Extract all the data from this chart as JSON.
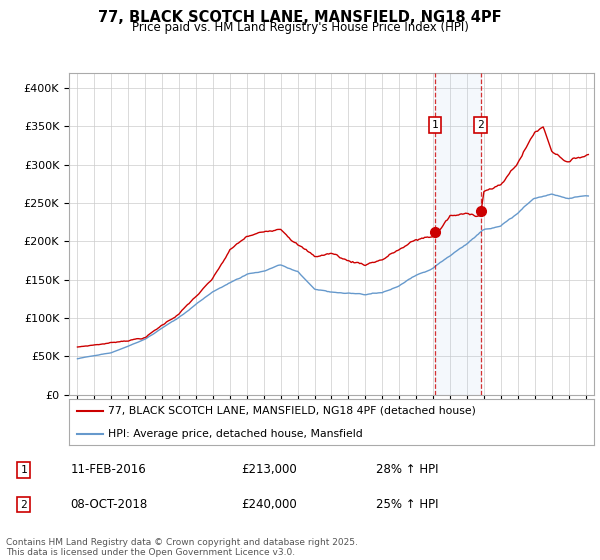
{
  "title": "77, BLACK SCOTCH LANE, MANSFIELD, NG18 4PF",
  "subtitle": "Price paid vs. HM Land Registry's House Price Index (HPI)",
  "ylabel_ticks": [
    "£0",
    "£50K",
    "£100K",
    "£150K",
    "£200K",
    "£250K",
    "£300K",
    "£350K",
    "£400K"
  ],
  "ytick_vals": [
    0,
    50000,
    100000,
    150000,
    200000,
    250000,
    300000,
    350000,
    400000
  ],
  "ylim": [
    0,
    420000
  ],
  "xlim_start": 1994.5,
  "xlim_end": 2025.5,
  "xticks": [
    1995,
    1996,
    1997,
    1998,
    1999,
    2000,
    2001,
    2002,
    2003,
    2004,
    2005,
    2006,
    2007,
    2008,
    2009,
    2010,
    2011,
    2012,
    2013,
    2014,
    2015,
    2016,
    2017,
    2018,
    2019,
    2020,
    2021,
    2022,
    2023,
    2024,
    2025
  ],
  "red_color": "#cc0000",
  "blue_color": "#6699cc",
  "event1_x": 2016.1,
  "event2_x": 2018.8,
  "event1_price": 213000,
  "event2_price": 240000,
  "event1_label": "1",
  "event2_label": "2",
  "legend_line1": "77, BLACK SCOTCH LANE, MANSFIELD, NG18 4PF (detached house)",
  "legend_line2": "HPI: Average price, detached house, Mansfield",
  "annotation1_date": "11-FEB-2016",
  "annotation1_price": "£213,000",
  "annotation1_hpi": "28% ↑ HPI",
  "annotation2_date": "08-OCT-2018",
  "annotation2_price": "£240,000",
  "annotation2_hpi": "25% ↑ HPI",
  "footer": "Contains HM Land Registry data © Crown copyright and database right 2025.\nThis data is licensed under the Open Government Licence v3.0.",
  "background_color": "#ffffff",
  "grid_color": "#cccccc"
}
